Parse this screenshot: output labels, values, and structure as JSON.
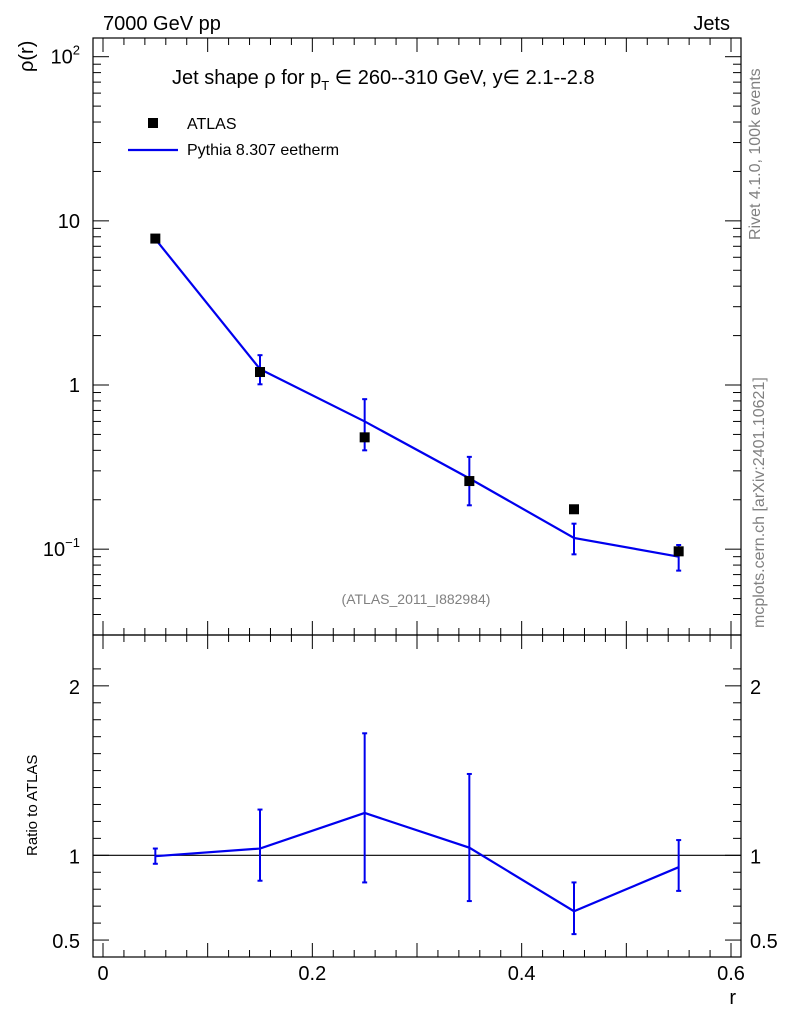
{
  "header": {
    "left": "7000 GeV pp",
    "right": "Jets"
  },
  "side_labels": {
    "rivet": "Rivet 4.1.0,  100k events",
    "mcplots": "mcplots.cern.ch [arXiv:2401.10621]"
  },
  "chart_data": {
    "type": "line",
    "title_parts": {
      "pre": "Jet shape ",
      "rho": "ρ",
      "for": " for p",
      "sub": "T",
      "rest": " ∈ 260--310 GeV, y∈ 2.1--2.8"
    },
    "analysis_id": "(ATLAS_2011_I882984)",
    "xlabel": "r",
    "ylabel": "ρ(r)",
    "ratio_ylabel": "Ratio to ATLAS",
    "xlim": [
      0,
      0.6
    ],
    "ylim_log": [
      0.03,
      130
    ],
    "ratio_ylim": [
      0.4,
      2.3
    ],
    "x_ticks": [
      {
        "v": 0,
        "label": "0"
      },
      {
        "v": 0.2,
        "label": "0.2"
      },
      {
        "v": 0.4,
        "label": "0.4"
      },
      {
        "v": 0.6,
        "label": "0.6"
      }
    ],
    "y_ticks": [
      {
        "v": 0.1,
        "base": "10",
        "exp": "−1"
      },
      {
        "v": 1,
        "base": "1",
        "exp": ""
      },
      {
        "v": 10,
        "base": "10",
        "exp": ""
      },
      {
        "v": 100,
        "base": "10",
        "exp": "2"
      }
    ],
    "ratio_ticks": [
      {
        "v": 0.5,
        "label": "0.5"
      },
      {
        "v": 1,
        "label": "1"
      },
      {
        "v": 2,
        "label": "2"
      }
    ],
    "x": [
      0.05,
      0.15,
      0.25,
      0.35,
      0.45,
      0.55
    ],
    "series": [
      {
        "name": "ATLAS",
        "kind": "points",
        "color": "#000000",
        "values": [
          7.8,
          1.2,
          0.48,
          0.26,
          0.175,
          0.097
        ]
      },
      {
        "name": "Pythia 8.307 eetherm",
        "kind": "line",
        "color": "#0000ee",
        "values": [
          7.75,
          1.25,
          0.6,
          0.27,
          0.117,
          0.09
        ],
        "err_lo": [
          7.4,
          1.01,
          0.4,
          0.185,
          0.093,
          0.074
        ],
        "err_hi": [
          8.15,
          1.52,
          0.82,
          0.365,
          0.143,
          0.106
        ]
      }
    ],
    "ratio": {
      "values": [
        0.995,
        1.04,
        1.25,
        1.045,
        0.67,
        0.93
      ],
      "err_lo": [
        0.95,
        0.85,
        0.84,
        0.73,
        0.535,
        0.79
      ],
      "err_hi": [
        1.04,
        1.27,
        1.72,
        1.48,
        0.84,
        1.09
      ]
    }
  }
}
